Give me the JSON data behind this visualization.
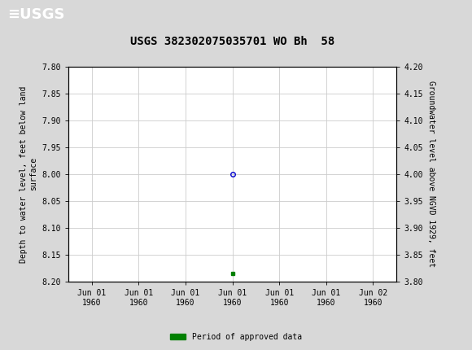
{
  "title": "USGS 382302075035701 WO Bh  58",
  "ylabel_left": "Depth to water level, feet below land\nsurface",
  "ylabel_right": "Groundwater level above NGVD 1929, feet",
  "ylim_left": [
    8.2,
    7.8
  ],
  "ylim_right": [
    3.8,
    4.2
  ],
  "yticks_left": [
    7.8,
    7.85,
    7.9,
    7.95,
    8.0,
    8.05,
    8.1,
    8.15,
    8.2
  ],
  "yticks_right": [
    4.2,
    4.15,
    4.1,
    4.05,
    4.0,
    3.95,
    3.9,
    3.85,
    3.8
  ],
  "data_point_x": 4,
  "data_point_y": 8.0,
  "data_point_color": "#0000cc",
  "green_marker_x": 4,
  "green_marker_y": 8.185,
  "green_color": "#008000",
  "header_color": "#006633",
  "background_color": "#d8d8d8",
  "plot_bg_color": "#ffffff",
  "grid_color": "#cccccc",
  "legend_label": "Period of approved data",
  "font_family": "DejaVu Sans Mono",
  "title_fontsize": 10,
  "axis_label_fontsize": 7,
  "tick_fontsize": 7,
  "xlim": [
    0,
    7
  ],
  "xtick_positions": [
    0.5,
    1.5,
    2.5,
    3.5,
    4.5,
    5.5,
    6.5
  ],
  "xtick_labels": [
    "Jun 01\n1960",
    "Jun 01\n1960",
    "Jun 01\n1960",
    "Jun 01\n1960",
    "Jun 01\n1960",
    "Jun 01\n1960",
    "Jun 02\n1960"
  ]
}
